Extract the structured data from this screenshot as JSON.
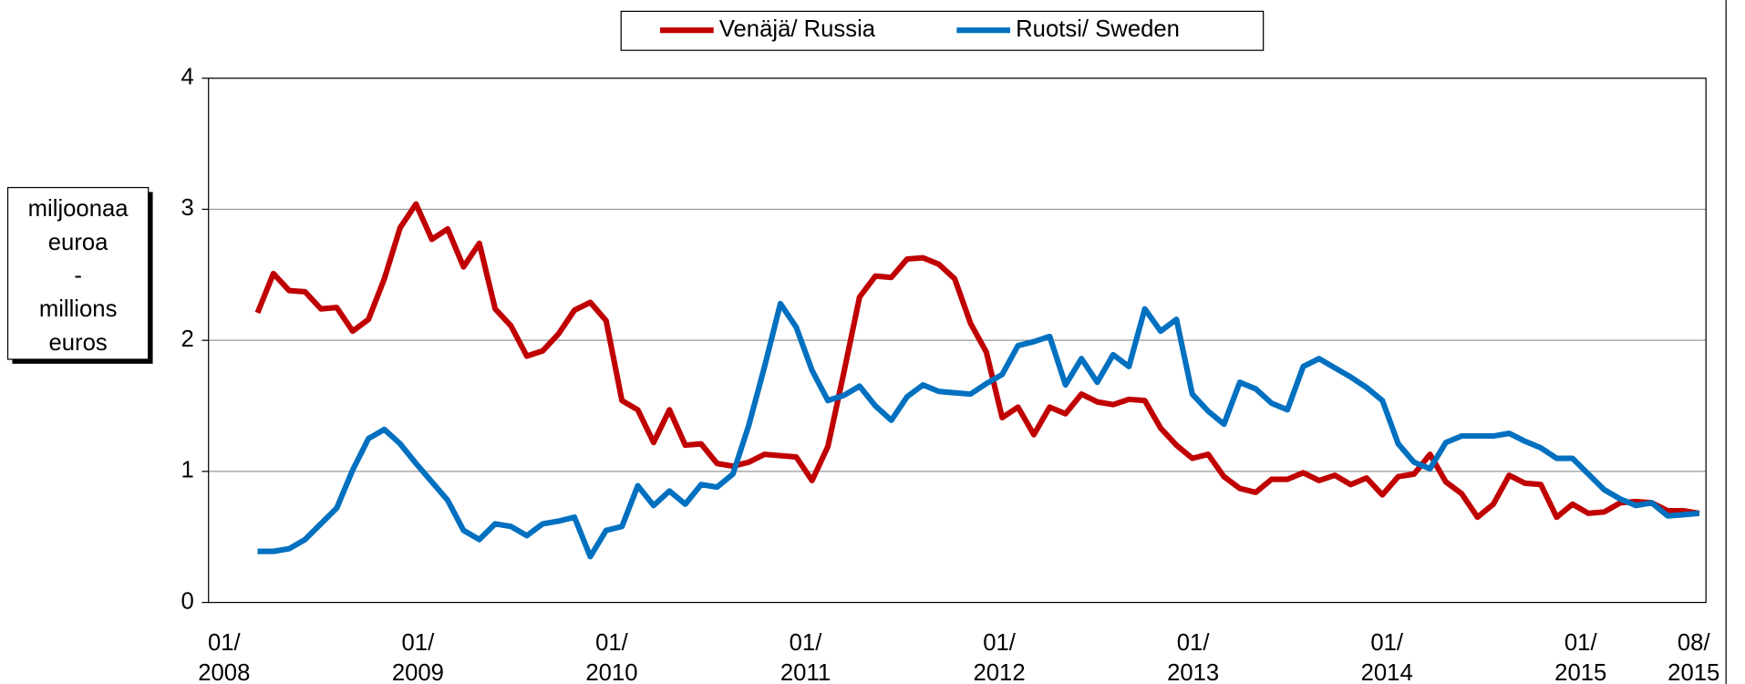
{
  "chart_data": {
    "type": "line",
    "ylabel": [
      "miljoonaa",
      "euroa",
      "-",
      "millions",
      "euros"
    ],
    "categories": [
      "01/ 2008",
      null,
      null,
      null,
      null,
      null,
      null,
      null,
      null,
      null,
      null,
      null,
      "01/ 2009",
      null,
      null,
      null,
      null,
      null,
      null,
      null,
      null,
      null,
      null,
      null,
      "01/ 2010",
      null,
      null,
      null,
      null,
      null,
      null,
      null,
      null,
      null,
      null,
      null,
      "01/ 2011",
      null,
      null,
      null,
      null,
      null,
      null,
      null,
      null,
      null,
      null,
      null,
      "01/ 2012",
      null,
      null,
      null,
      null,
      null,
      null,
      null,
      null,
      null,
      null,
      null,
      "01/ 2013",
      null,
      null,
      null,
      null,
      null,
      null,
      null,
      null,
      null,
      null,
      null,
      "01/ 2014",
      null,
      null,
      null,
      null,
      null,
      null,
      null,
      null,
      null,
      null,
      null,
      "01/ 2015",
      null,
      null,
      null,
      null,
      null,
      null,
      "08/ 2015"
    ],
    "series": [
      {
        "name": "Venäjä/ Russia",
        "color": "#c00000",
        "values": [
          2.21,
          2.51,
          2.38,
          2.37,
          2.24,
          2.25,
          2.07,
          2.16,
          2.47,
          2.86,
          3.04,
          2.77,
          2.85,
          2.56,
          2.74,
          2.24,
          2.11,
          1.88,
          1.92,
          2.05,
          2.23,
          2.29,
          2.15,
          1.54,
          1.47,
          1.22,
          1.47,
          1.2,
          1.21,
          1.06,
          1.04,
          1.07,
          1.13,
          1.12,
          1.11,
          0.93,
          1.19,
          1.75,
          2.33,
          2.49,
          2.48,
          2.62,
          2.63,
          2.58,
          2.47,
          2.13,
          1.91,
          1.41,
          1.49,
          1.28,
          1.49,
          1.44,
          1.59,
          1.53,
          1.51,
          1.55,
          1.54,
          1.33,
          1.2,
          1.1,
          1.13,
          0.96,
          0.87,
          0.84,
          0.94,
          0.94,
          0.99,
          0.93,
          0.97,
          0.9,
          0.95,
          0.82,
          0.96,
          0.98,
          1.13,
          0.92,
          0.83,
          0.65,
          0.75,
          0.97,
          0.91,
          0.9,
          0.65,
          0.75,
          0.68,
          0.69,
          0.76,
          0.77,
          0.76,
          0.7,
          0.7,
          0.68
        ]
      },
      {
        "name": "Ruotsi/ Sweden",
        "color": "#0070c0",
        "values": [
          0.39,
          0.39,
          0.41,
          0.48,
          0.6,
          0.72,
          1.01,
          1.25,
          1.32,
          1.21,
          1.06,
          0.92,
          0.78,
          0.55,
          0.48,
          0.6,
          0.58,
          0.51,
          0.6,
          0.62,
          0.65,
          0.35,
          0.55,
          0.58,
          0.89,
          0.74,
          0.85,
          0.75,
          0.9,
          0.88,
          0.98,
          1.35,
          1.8,
          2.28,
          2.1,
          1.77,
          1.54,
          1.58,
          1.65,
          1.5,
          1.39,
          1.57,
          1.66,
          1.61,
          1.6,
          1.59,
          1.67,
          1.74,
          1.96,
          1.99,
          2.03,
          1.66,
          1.86,
          1.68,
          1.89,
          1.8,
          2.24,
          2.07,
          2.16,
          1.59,
          1.46,
          1.36,
          1.68,
          1.63,
          1.52,
          1.47,
          1.8,
          1.86,
          1.79,
          1.72,
          1.64,
          1.54,
          1.21,
          1.07,
          1.02,
          1.22,
          1.27,
          1.27,
          1.27,
          1.29,
          1.23,
          1.18,
          1.1,
          1.1,
          0.98,
          0.86,
          0.79,
          0.74,
          0.76,
          0.66,
          0.67,
          0.68
        ]
      }
    ],
    "ylim": [
      0,
      4
    ],
    "yticks": [
      0,
      1,
      2,
      3,
      4
    ],
    "grid": true,
    "legend": "top"
  }
}
